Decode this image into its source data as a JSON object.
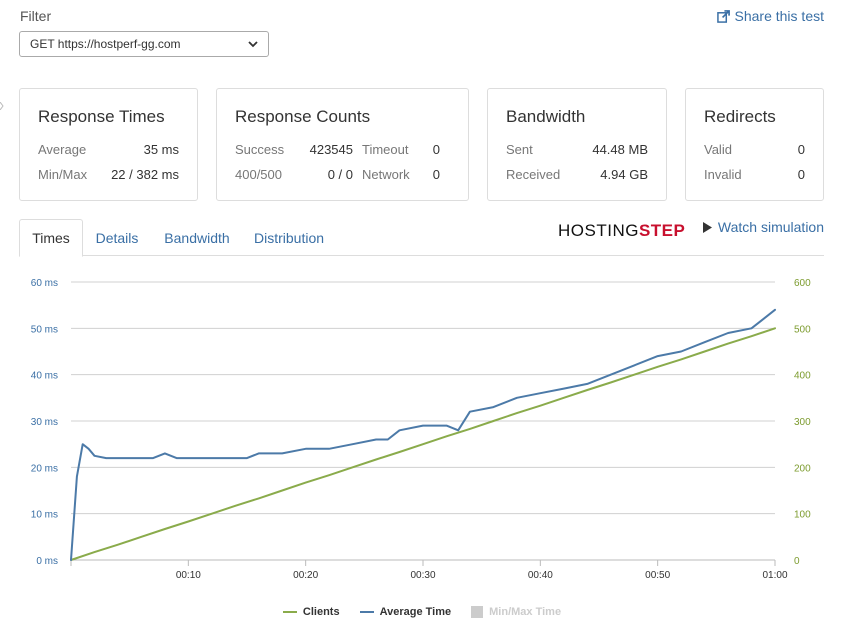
{
  "filter": {
    "label": "Filter",
    "selected": "GET https://hostperf-gg.com"
  },
  "share": {
    "label": "Share this test",
    "icon": "share-icon"
  },
  "cards": {
    "response_times": {
      "title": "Response Times",
      "average_label": "Average",
      "average_value": "35 ms",
      "minmax_label": "Min/Max",
      "minmax_value": "22 / 382 ms"
    },
    "response_counts": {
      "title": "Response Counts",
      "success_label": "Success",
      "success_value": "423545",
      "timeout_label": "Timeout",
      "timeout_value": "0",
      "err_label": "400/500",
      "err_value": "0 / 0",
      "network_label": "Network",
      "network_value": "0"
    },
    "bandwidth": {
      "title": "Bandwidth",
      "sent_label": "Sent",
      "sent_value": "44.48 MB",
      "received_label": "Received",
      "received_value": "4.94 GB"
    },
    "redirects": {
      "title": "Redirects",
      "valid_label": "Valid",
      "valid_value": "0",
      "invalid_label": "Invalid",
      "invalid_value": "0"
    }
  },
  "tabs": [
    {
      "label": "Times",
      "active": true
    },
    {
      "label": "Details",
      "active": false
    },
    {
      "label": "Bandwidth",
      "active": false
    },
    {
      "label": "Distribution",
      "active": false
    }
  ],
  "logo": {
    "part1": "HOSTING",
    "part2": "STEP"
  },
  "watch": {
    "label": "Watch simulation",
    "icon": "play-icon"
  },
  "colors": {
    "clients": "#8aab4b",
    "average": "#4c7aa8",
    "minmax": "#cccccc",
    "grid": "#d0d0d0",
    "link": "#3a6fa5"
  },
  "chart_data": {
    "type": "line",
    "x_ticks": [
      "00:10",
      "00:20",
      "00:30",
      "00:40",
      "00:50",
      "01:00"
    ],
    "x_tick_seconds": [
      10,
      20,
      30,
      40,
      50,
      60
    ],
    "xlim": [
      0,
      60
    ],
    "y_left_ticks": [
      "0 ms",
      "10 ms",
      "20 ms",
      "30 ms",
      "40 ms",
      "50 ms",
      "60 ms"
    ],
    "y_left_lim": [
      0,
      60
    ],
    "y_right_ticks": [
      "0",
      "100",
      "200",
      "300",
      "400",
      "500",
      "600"
    ],
    "y_right_lim": [
      0,
      600
    ],
    "grid": true,
    "legend_position": "bottom",
    "series": [
      {
        "name": "Clients",
        "axis": "right",
        "x": [
          0,
          2,
          4,
          6,
          8,
          10,
          12,
          14,
          16,
          18,
          20,
          22,
          24,
          26,
          28,
          30,
          32,
          34,
          36,
          38,
          40,
          42,
          44,
          46,
          48,
          50,
          52,
          54,
          56,
          58,
          60
        ],
        "values": [
          0,
          17,
          33,
          50,
          67,
          83,
          100,
          117,
          133,
          150,
          167,
          183,
          200,
          217,
          233,
          250,
          267,
          283,
          300,
          317,
          333,
          350,
          367,
          383,
          400,
          417,
          433,
          450,
          467,
          483,
          500
        ]
      },
      {
        "name": "Average Time",
        "axis": "left",
        "x": [
          0,
          0.5,
          1,
          1.5,
          2,
          3,
          4,
          6,
          7,
          8,
          9,
          10,
          12,
          14,
          15,
          16,
          18,
          20,
          22,
          24,
          26,
          27,
          28,
          30,
          32,
          33,
          34,
          36,
          38,
          40,
          42,
          44,
          46,
          48,
          50,
          52,
          54,
          56,
          58,
          59,
          60
        ],
        "values": [
          0,
          18,
          25,
          24,
          22.5,
          22,
          22,
          22,
          22,
          23,
          22,
          22,
          22,
          22,
          22,
          23,
          23,
          24,
          24,
          25,
          26,
          26,
          28,
          29,
          29,
          28,
          32,
          33,
          35,
          36,
          37,
          38,
          40,
          42,
          44,
          45,
          47,
          49,
          50,
          52,
          54
        ]
      },
      {
        "name": "Min/Max Time",
        "axis": "left",
        "hidden": true,
        "x": [],
        "values": []
      }
    ]
  }
}
